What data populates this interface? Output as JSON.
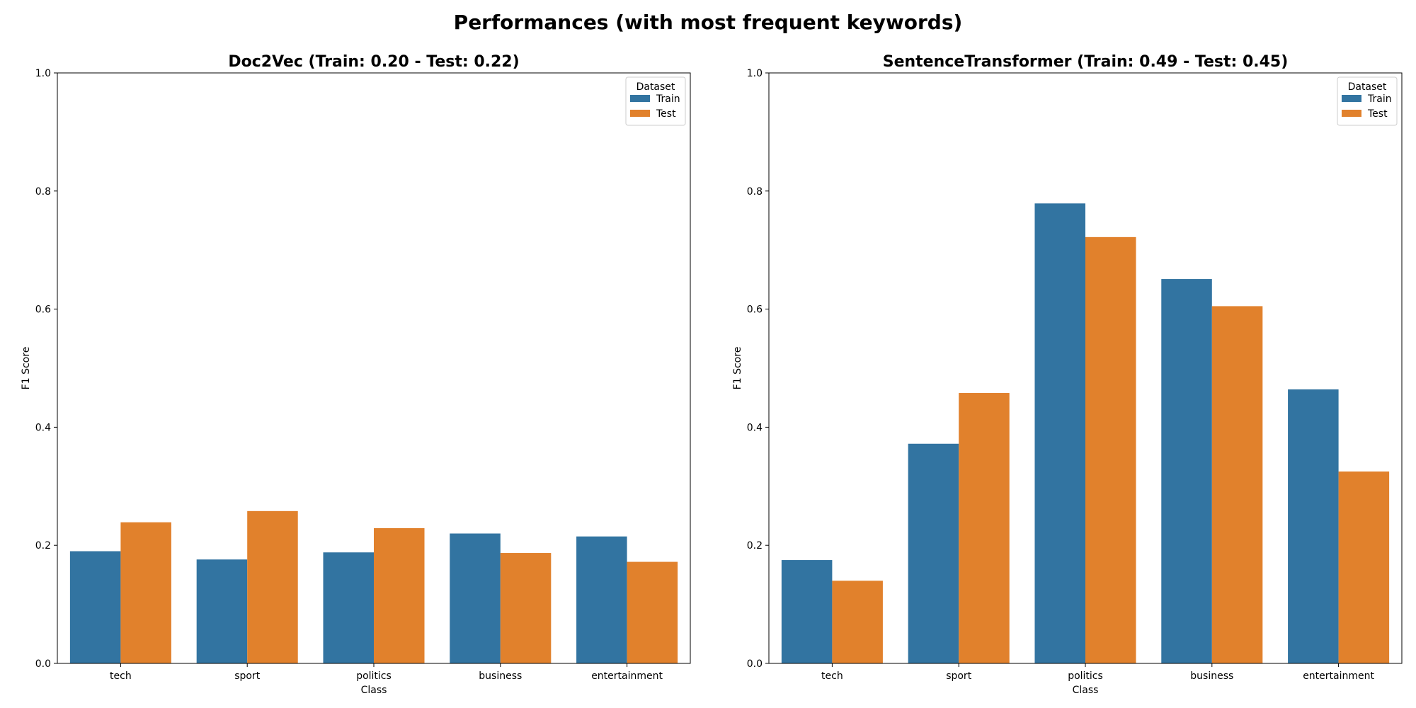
{
  "figure": {
    "suptitle": "Performances (with most frequent keywords)"
  },
  "chart_data": [
    {
      "type": "bar",
      "title": "Doc2Vec (Train: 0.20 - Test: 0.22)",
      "xlabel": "Class",
      "ylabel": "F1 Score",
      "ylim": [
        0,
        1.0
      ],
      "yticks": [
        "0.0",
        "0.2",
        "0.4",
        "0.6",
        "0.8",
        "1.0"
      ],
      "categories": [
        "tech",
        "sport",
        "politics",
        "business",
        "entertainment"
      ],
      "legend": {
        "title": "Dataset",
        "placement": "top-right"
      },
      "grid": false,
      "series": [
        {
          "name": "Train",
          "color": "#3274a1",
          "values": [
            0.19,
            0.176,
            0.188,
            0.22,
            0.215
          ]
        },
        {
          "name": "Test",
          "color": "#e1812c",
          "values": [
            0.239,
            0.258,
            0.229,
            0.187,
            0.172
          ]
        }
      ]
    },
    {
      "type": "bar",
      "title": "SentenceTransformer (Train: 0.49 - Test: 0.45)",
      "xlabel": "Class",
      "ylabel": "F1 Score",
      "ylim": [
        0,
        1.0
      ],
      "yticks": [
        "0.0",
        "0.2",
        "0.4",
        "0.6",
        "0.8",
        "1.0"
      ],
      "categories": [
        "tech",
        "sport",
        "politics",
        "business",
        "entertainment"
      ],
      "legend": {
        "title": "Dataset",
        "placement": "top-right"
      },
      "grid": false,
      "series": [
        {
          "name": "Train",
          "color": "#3274a1",
          "values": [
            0.175,
            0.372,
            0.779,
            0.651,
            0.464
          ]
        },
        {
          "name": "Test",
          "color": "#e1812c",
          "values": [
            0.14,
            0.458,
            0.722,
            0.605,
            0.325
          ]
        }
      ]
    }
  ]
}
